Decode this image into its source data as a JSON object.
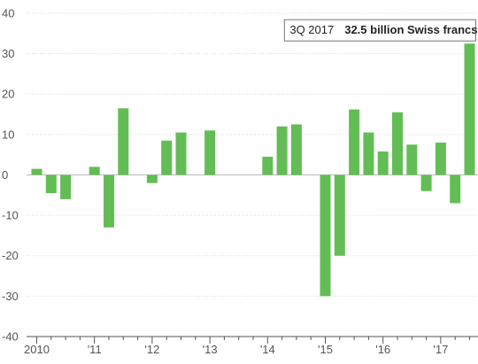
{
  "chart_data": {
    "type": "bar",
    "title": "",
    "xlabel": "",
    "ylabel": "",
    "ylim": [
      -40,
      40
    ],
    "y_ticks": [
      40,
      30,
      20,
      10,
      0,
      -10,
      -20,
      -30,
      -40
    ],
    "grid": true,
    "bar_color": "#63bd55",
    "x_tick_labels": [
      "2010",
      "'11",
      "'12",
      "'13",
      "'14",
      "'15",
      "'16",
      "'17"
    ],
    "categories": [
      "1Q 2010",
      "2Q 2010",
      "3Q 2010",
      "4Q 2010",
      "1Q 2011",
      "2Q 2011",
      "3Q 2011",
      "4Q 2011",
      "1Q 2012",
      "2Q 2012",
      "3Q 2012",
      "4Q 2012",
      "1Q 2013",
      "2Q 2013",
      "3Q 2013",
      "4Q 2013",
      "1Q 2014",
      "2Q 2014",
      "3Q 2014",
      "4Q 2014",
      "1Q 2015",
      "2Q 2015",
      "3Q 2015",
      "4Q 2015",
      "1Q 2016",
      "2Q 2016",
      "3Q 2016",
      "4Q 2016",
      "1Q 2017",
      "2Q 2017",
      "3Q 2017"
    ],
    "values": [
      1.5,
      -4.5,
      -6,
      0,
      2,
      -13,
      16.5,
      0,
      -2,
      8.5,
      10.5,
      0,
      11,
      0,
      0,
      0,
      4.5,
      12,
      12.5,
      0,
      -30,
      -20,
      16.2,
      10.5,
      5.8,
      15.5,
      7.5,
      -4,
      8,
      -7,
      32.5
    ],
    "annotation": {
      "period": "3Q 2017",
      "value_text": "32.5 billion Swiss francs"
    }
  }
}
